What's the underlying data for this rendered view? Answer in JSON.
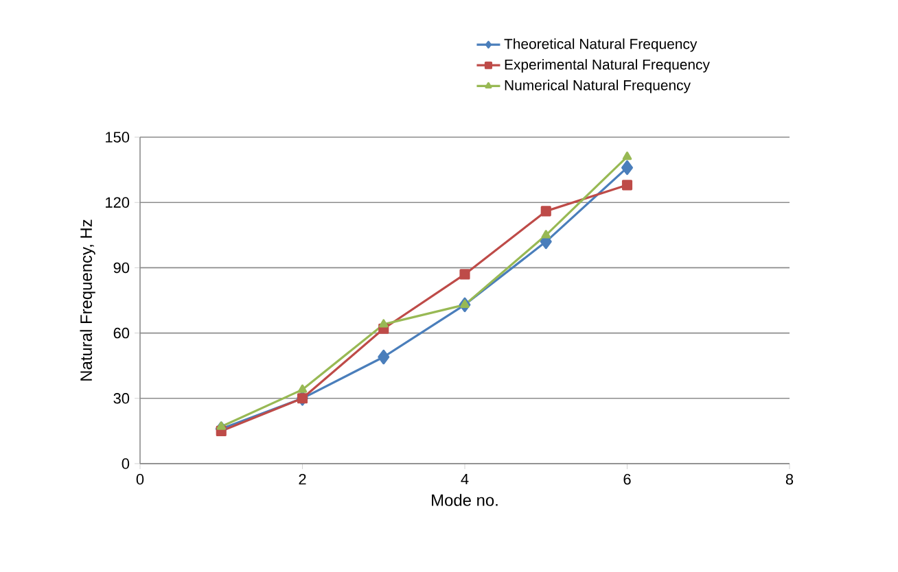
{
  "chart_data": {
    "type": "line",
    "xlabel": "Mode no.",
    "ylabel": "Natural Frequency, Hz",
    "x": [
      1,
      2,
      3,
      4,
      5,
      6
    ],
    "series": [
      {
        "name": "Theoretical Natural Frequency",
        "color": "#4a7ebb",
        "marker": "diamond",
        "values": [
          16,
          30,
          49,
          73,
          102,
          136
        ]
      },
      {
        "name": "Experimental Natural Frequency",
        "color": "#be4b48",
        "marker": "square",
        "values": [
          15,
          30,
          62,
          87,
          116,
          128
        ]
      },
      {
        "name": "Numerical Natural Frequency",
        "color": "#98b954",
        "marker": "triangle",
        "values": [
          17,
          34,
          64,
          73,
          105,
          141
        ]
      }
    ],
    "xlim": [
      0,
      8
    ],
    "xticks": [
      0,
      2,
      4,
      6,
      8
    ],
    "ylim": [
      0,
      150
    ],
    "yticks": [
      0,
      30,
      60,
      90,
      120,
      150
    ],
    "grid": "y",
    "legend": "top right",
    "line_style": "solid"
  }
}
